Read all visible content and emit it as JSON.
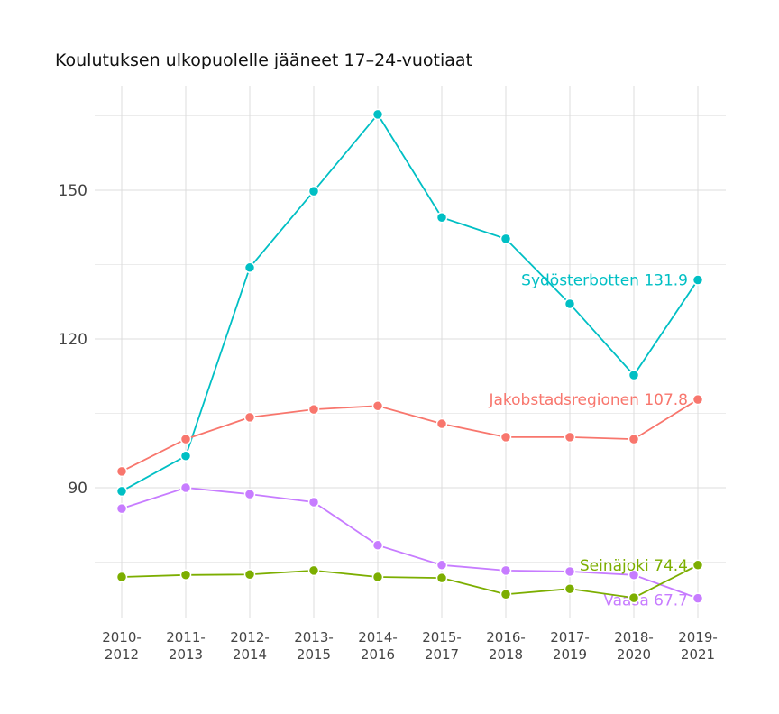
{
  "chart_data": {
    "type": "line",
    "title": "Koulutuksen ulkopuolelle jääneet 17–24-vuotiaat",
    "xlabel": "",
    "ylabel": "",
    "categories": [
      "2010-\n2012",
      "2011-\n2013",
      "2012-\n2014",
      "2013-\n2015",
      "2014-\n2016",
      "2015-\n2017",
      "2016-\n2018",
      "2017-\n2019",
      "2018-\n2020",
      "2019-\n2021"
    ],
    "yticks": [
      90,
      120,
      150
    ],
    "ylim": [
      63,
      170
    ],
    "grid": true,
    "legend": "none (end-of-line labels)",
    "series": [
      {
        "name": "Sydösterbotten",
        "end_label": "Sydösterbotten 131.9",
        "color": "#00BFC4",
        "values": [
          89.3,
          96.4,
          134.4,
          149.8,
          165.3,
          144.5,
          140.2,
          127.1,
          112.7,
          131.9
        ]
      },
      {
        "name": "Jakobstadsregionen",
        "end_label": "Jakobstadsregionen 107.8",
        "color": "#F8766D",
        "values": [
          93.3,
          99.8,
          104.2,
          105.8,
          106.5,
          102.9,
          100.2,
          100.2,
          99.8,
          107.8
        ]
      },
      {
        "name": "Vaasa",
        "end_label": "Vaasa 67.7",
        "color": "#C77CFF",
        "values": [
          85.8,
          90.0,
          88.7,
          87.1,
          78.4,
          74.4,
          73.3,
          73.1,
          72.4,
          67.7
        ]
      },
      {
        "name": "Seinäjoki",
        "end_label": "Seinäjoki 74.4",
        "color": "#7CAE00",
        "values": [
          72.0,
          72.4,
          72.5,
          73.3,
          72.0,
          71.8,
          68.5,
          69.6,
          67.8,
          74.4
        ]
      }
    ]
  }
}
